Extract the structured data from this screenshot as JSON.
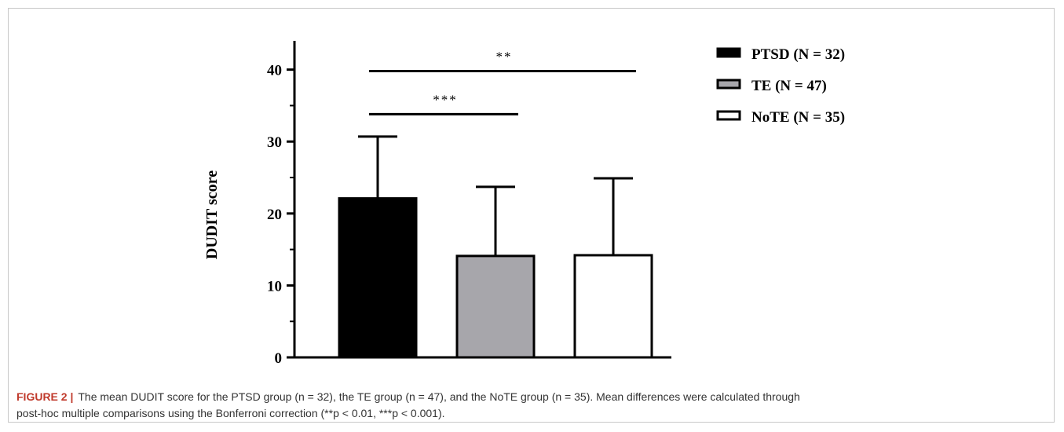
{
  "chart_data": {
    "type": "bar",
    "categories": [
      "PTSD (N = 32)",
      "TE (N = 47)",
      "NoTE (N = 35)"
    ],
    "values": [
      22.1,
      14.1,
      14.2
    ],
    "error_upper": [
      30.7,
      23.7,
      24.9
    ],
    "ylabel": "DUDIT score",
    "ylim": [
      0,
      44
    ],
    "yticks": [
      0,
      10,
      20,
      30,
      40
    ],
    "grid": false,
    "legend_position": "top-right",
    "colors": [
      "#000000",
      "#a7a6ab",
      "#ffffff"
    ],
    "legend": [
      {
        "label": "PTSD (N = 32)",
        "color": "#000000"
      },
      {
        "label": "TE (N = 47)",
        "color": "#a7a6ab"
      },
      {
        "label": "NoTE (N = 35)",
        "color": "#ffffff"
      }
    ],
    "significance": [
      {
        "from": 0,
        "to": 2,
        "y": 39.8,
        "label": "**"
      },
      {
        "from": 0,
        "to": 1,
        "y": 33.8,
        "label": "***"
      }
    ]
  },
  "caption": {
    "label": "FIGURE 2 |",
    "line1": "The mean DUDIT score for the PTSD group (n = 32), the TE group (n = 47), and the NoTE group (n = 35). Mean differences were calculated through",
    "line2": "post-hoc multiple comparisons using the Bonferroni correction (**p < 0.01, ***p < 0.001)."
  }
}
